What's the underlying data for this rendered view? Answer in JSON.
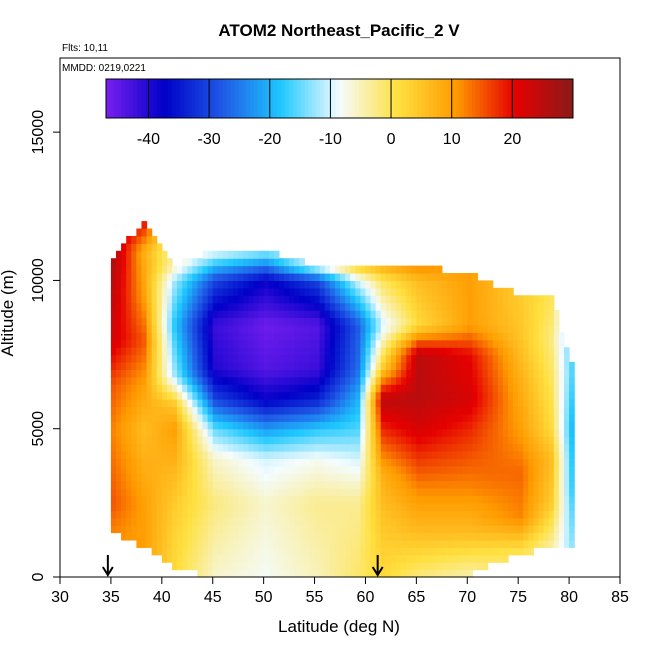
{
  "chart_data": {
    "type": "heatmap",
    "title": "ATOM2 Northeast_Pacific_2 V",
    "annotations": [
      "Flts: 10,11",
      "MMDD: 0219,0221"
    ],
    "xlabel": "Latitude (deg N)",
    "ylabel": "Altitude (m)",
    "xlim": [
      30,
      85
    ],
    "ylim": [
      0,
      17500
    ],
    "xticks": [
      30,
      35,
      40,
      45,
      50,
      55,
      60,
      65,
      70,
      75,
      80,
      85
    ],
    "yticks": [
      0,
      5000,
      10000,
      15000
    ],
    "colorbar": {
      "range": [
        -47,
        30
      ],
      "ticks": [
        -40,
        -30,
        -20,
        -10,
        0,
        10,
        20
      ],
      "placement": "top-inside",
      "colors": [
        "#7a1ff0",
        "#0000c8",
        "#1f5ae6",
        "#1fc8ff",
        "#f4fcff",
        "#ffe040",
        "#ff9a00",
        "#e60000",
        "#8b1a1a"
      ]
    },
    "flight_profile_markers_latitude": [
      34.7,
      61.2
    ],
    "profiles": [
      {
        "lat": 35.0,
        "top": 10800,
        "bottom": 1500,
        "layers": [
          [
            1500,
            12
          ],
          [
            2500,
            15
          ],
          [
            5000,
            12
          ],
          [
            6500,
            15
          ],
          [
            8000,
            22
          ],
          [
            9500,
            24
          ],
          [
            10800,
            26
          ]
        ]
      },
      {
        "lat": 38.0,
        "top": 12000,
        "bottom": 1000,
        "layers": [
          [
            1000,
            10
          ],
          [
            2500,
            10
          ],
          [
            5000,
            6
          ],
          [
            6500,
            10
          ],
          [
            8000,
            15
          ],
          [
            9500,
            10
          ],
          [
            11000,
            8
          ],
          [
            12000,
            20
          ]
        ]
      },
      {
        "lat": 41.0,
        "top": 10500,
        "bottom": 300,
        "layers": [
          [
            300,
            2
          ],
          [
            2500,
            4
          ],
          [
            5000,
            10
          ],
          [
            5800,
            5
          ],
          [
            6800,
            -12
          ],
          [
            8500,
            -18
          ],
          [
            10000,
            -12
          ],
          [
            10500,
            -5
          ]
        ]
      },
      {
        "lat": 45.0,
        "top": 11000,
        "bottom": 0,
        "layers": [
          [
            0,
            -6
          ],
          [
            2500,
            -2
          ],
          [
            4000,
            -6
          ],
          [
            5000,
            -15
          ],
          [
            6000,
            -30
          ],
          [
            7000,
            -40
          ],
          [
            8500,
            -42
          ],
          [
            10000,
            -30
          ],
          [
            11000,
            -8
          ]
        ]
      },
      {
        "lat": 50.0,
        "top": 11000,
        "bottom": 0,
        "layers": [
          [
            0,
            -8
          ],
          [
            2500,
            -6
          ],
          [
            4000,
            -10
          ],
          [
            5000,
            -22
          ],
          [
            6000,
            -38
          ],
          [
            7000,
            -44
          ],
          [
            8500,
            -46
          ],
          [
            10000,
            -38
          ],
          [
            11000,
            -12
          ]
        ]
      },
      {
        "lat": 55.0,
        "top": 10500,
        "bottom": 0,
        "layers": [
          [
            0,
            -5
          ],
          [
            2500,
            -3
          ],
          [
            4000,
            -8
          ],
          [
            5000,
            -18
          ],
          [
            6000,
            -34
          ],
          [
            7000,
            -42
          ],
          [
            8500,
            -44
          ],
          [
            10000,
            -30
          ],
          [
            10500,
            -8
          ]
        ]
      },
      {
        "lat": 59.0,
        "top": 10500,
        "bottom": 0,
        "layers": [
          [
            0,
            -1
          ],
          [
            2500,
            -3
          ],
          [
            4000,
            -10
          ],
          [
            5000,
            -16
          ],
          [
            6000,
            -20
          ],
          [
            7000,
            -26
          ],
          [
            8500,
            -28
          ],
          [
            10000,
            -10
          ],
          [
            10500,
            4
          ]
        ]
      },
      {
        "lat": 61.5,
        "top": 10500,
        "bottom": 0,
        "layers": [
          [
            0,
            2
          ],
          [
            2000,
            5
          ],
          [
            3500,
            8
          ],
          [
            5000,
            18
          ],
          [
            6000,
            25
          ],
          [
            7000,
            5
          ],
          [
            8500,
            -10
          ],
          [
            10000,
            0
          ],
          [
            10500,
            8
          ]
        ]
      },
      {
        "lat": 65.0,
        "top": 10500,
        "bottom": 0,
        "layers": [
          [
            0,
            -2
          ],
          [
            1500,
            6
          ],
          [
            3000,
            12
          ],
          [
            5000,
            22
          ],
          [
            6000,
            25
          ],
          [
            7500,
            25
          ],
          [
            8500,
            2
          ],
          [
            10000,
            6
          ],
          [
            10500,
            12
          ]
        ]
      },
      {
        "lat": 70.0,
        "top": 10200,
        "bottom": 100,
        "layers": [
          [
            100,
            -4
          ],
          [
            1500,
            6
          ],
          [
            3000,
            12
          ],
          [
            5000,
            18
          ],
          [
            6000,
            22
          ],
          [
            7500,
            20
          ],
          [
            8500,
            10
          ],
          [
            10200,
            10
          ]
        ]
      },
      {
        "lat": 75.0,
        "top": 9500,
        "bottom": 800,
        "layers": [
          [
            800,
            0
          ],
          [
            2000,
            12
          ],
          [
            3500,
            14
          ],
          [
            5000,
            10
          ],
          [
            6500,
            8
          ],
          [
            8000,
            5
          ],
          [
            9500,
            4
          ]
        ]
      },
      {
        "lat": 78.0,
        "top": 9500,
        "bottom": 1000,
        "layers": [
          [
            1000,
            -4
          ],
          [
            2500,
            4
          ],
          [
            4000,
            6
          ],
          [
            5000,
            2
          ],
          [
            6500,
            0
          ],
          [
            8000,
            -2
          ],
          [
            9500,
            0
          ]
        ]
      },
      {
        "lat": 80.3,
        "top": 6800,
        "bottom": 1000,
        "layers": [
          [
            1000,
            -14
          ],
          [
            3000,
            -20
          ],
          [
            5000,
            -22
          ],
          [
            6800,
            -18
          ]
        ]
      }
    ]
  }
}
